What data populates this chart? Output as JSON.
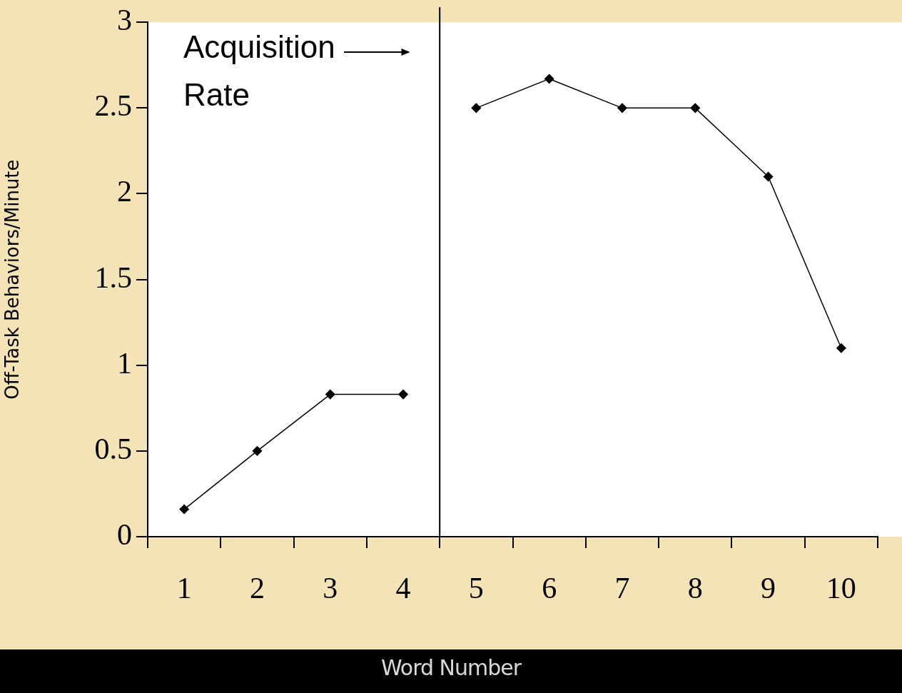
{
  "chart_data": {
    "type": "line",
    "xlabel": "Word Number",
    "ylabel": "Off-Task Behaviors/Minute",
    "xlim": [
      0.5,
      10.5
    ],
    "xticks": [
      {
        "value": 0.5,
        "label": null
      },
      1,
      {
        "value": 1.5,
        "label": null
      },
      2,
      {
        "value": 2.5,
        "label": null
      },
      3,
      {
        "value": 3.5,
        "label": null
      },
      4,
      {
        "value": 4.5,
        "label": null
      },
      5,
      {
        "value": 5.5,
        "label": null
      },
      6,
      {
        "value": 6.5,
        "label": null
      },
      7,
      {
        "value": 7.5,
        "label": null
      },
      8,
      {
        "value": 8.5,
        "label": null
      },
      9,
      {
        "value": 9.5,
        "label": null
      },
      10,
      {
        "value": 10.5,
        "label": null
      }
    ],
    "ylim": [
      0,
      3
    ],
    "yticks": [
      0,
      0.5,
      1,
      1.5,
      2,
      2.5,
      3
    ],
    "series": [
      {
        "color": "#000000",
        "x": [
          1,
          2,
          3,
          4
        ],
        "values": [
          0.16,
          0.5,
          0.83,
          0.83
        ]
      },
      {
        "color": "#000000",
        "x": [
          5,
          6,
          7,
          8,
          9,
          10
        ],
        "values": [
          2.5,
          2.67,
          2.5,
          2.5,
          2.1,
          1.1
        ]
      }
    ],
    "ref_lines": [
      {
        "axis": "x",
        "value": 4.5,
        "label": "Acquisition Rate",
        "color": "#000000"
      }
    ],
    "marker": "diamond",
    "line_style": "solid",
    "grid": false,
    "legend": false
  }
}
